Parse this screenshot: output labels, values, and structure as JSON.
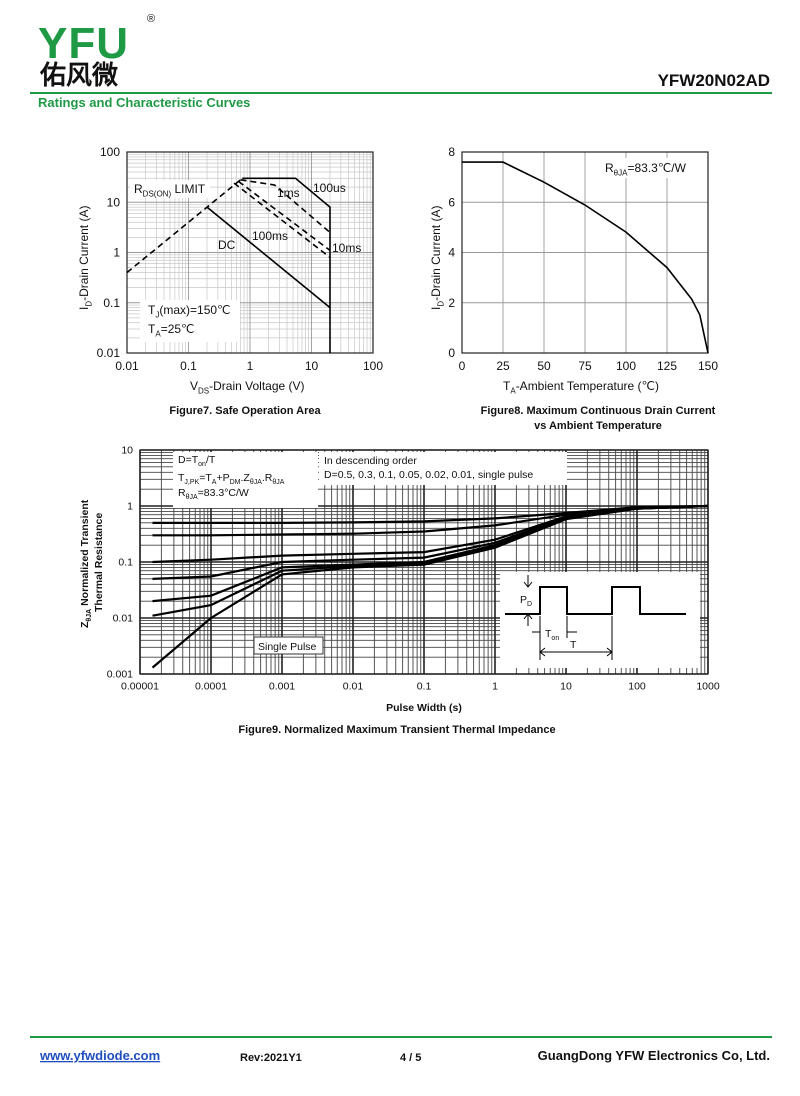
{
  "header": {
    "logo": "YFU",
    "logo_mark": "®",
    "logo_cn": "佑风微",
    "part_number": "YFW20N02AD",
    "section": "Ratings and Characteristic Curves"
  },
  "footer": {
    "website": "www.yfwdiode.com",
    "revision": "Rev:2021Y1",
    "page": "4 / 5",
    "company": "GuangDong YFW Electronics Co, Ltd."
  },
  "chart_data": [
    {
      "type": "line",
      "caption": [
        "Figure7. Safe Operation Area"
      ],
      "xlabel": [
        "V",
        "DS",
        "-Drain Voltage (V)"
      ],
      "ylabel": [
        "I",
        "D",
        "-Drain Current (A)"
      ],
      "xscale": "log",
      "yscale": "log",
      "grid": true,
      "xlim": [
        0.01,
        100
      ],
      "ylim": [
        0.01,
        100
      ],
      "xticks": [
        0.01,
        0.1,
        1,
        10,
        100
      ],
      "yticks": [
        0.01,
        0.1,
        1,
        10,
        100
      ],
      "series": [
        {
          "color": "#000000",
          "style": "dashed",
          "x": [
            0.01,
            0.7
          ],
          "values": [
            0.4,
            28
          ]
        },
        {
          "name": "100us",
          "color": "#000000",
          "style": "solid",
          "x": [
            0.75,
            5.5,
            20,
            20
          ],
          "values": [
            30,
            30,
            8,
            0.01
          ]
        },
        {
          "name": "1ms",
          "color": "#000000",
          "style": "dashed",
          "x": [
            0.7,
            2.5,
            20
          ],
          "values": [
            28,
            22,
            2.5
          ]
        },
        {
          "name": "10ms",
          "color": "#000000",
          "style": "dashed",
          "x": [
            0.65,
            20
          ],
          "values": [
            26,
            1.1
          ]
        },
        {
          "name": "100ms",
          "color": "#000000",
          "style": "dashed",
          "x": [
            0.55,
            20
          ],
          "values": [
            24,
            0.8
          ]
        },
        {
          "name": "DC",
          "color": "#000000",
          "style": "solid",
          "x": [
            0.2,
            20
          ],
          "values": [
            8,
            0.08
          ]
        }
      ],
      "annotations": [
        [
          "R",
          "DS(ON)",
          " LIMIT"
        ],
        [
          "T",
          "J",
          "(max)=150℃"
        ],
        [
          "T",
          "A",
          "=25℃"
        ]
      ]
    },
    {
      "type": "line",
      "caption": [
        "Figure8. Maximum Continuous Drain Current",
        "vs Ambient Temperature"
      ],
      "xlabel": [
        "T",
        "A",
        "-Ambient Temperature (℃)"
      ],
      "ylabel": [
        "I",
        "D",
        "-Drain Current (A)"
      ],
      "xscale": "linear",
      "yscale": "linear",
      "grid": true,
      "xlim": [
        0,
        150
      ],
      "ylim": [
        0,
        8
      ],
      "xticks": [
        0,
        25,
        50,
        75,
        100,
        125,
        150
      ],
      "yticks": [
        0,
        2,
        4,
        6,
        8
      ],
      "series": [
        {
          "color": "#000000",
          "style": "solid",
          "x": [
            0,
            25,
            50,
            75,
            100,
            125,
            140,
            145,
            150
          ],
          "values": [
            7.6,
            7.6,
            6.8,
            5.89,
            4.81,
            3.4,
            2.15,
            1.52,
            0
          ]
        }
      ],
      "annotations": [
        [
          "R",
          "θJA",
          "=83.3℃/W"
        ]
      ]
    },
    {
      "type": "line",
      "caption": [
        "Figure9. Normalized Maximum Transient Thermal Impedance"
      ],
      "xlabel": [
        "Pulse Width (s)"
      ],
      "ylabel": [
        "Z",
        "θJA",
        " Normalized Transient"
      ],
      "ylabel_line2": "Thermal Resistance",
      "xscale": "log",
      "yscale": "log",
      "grid": true,
      "xlim": [
        1e-05,
        1000
      ],
      "ylim": [
        0.001,
        10
      ],
      "xticks": [
        1e-05,
        0.0001,
        0.001,
        0.01,
        0.1,
        1,
        10,
        100,
        1000
      ],
      "yticks": [
        0.001,
        0.01,
        0.1,
        1,
        10
      ],
      "x": [
        1.5e-05,
        0.0001,
        0.001,
        0.01,
        0.1,
        1,
        10,
        100,
        1000
      ],
      "series": [
        {
          "color": "#000000",
          "style": "solid",
          "values": [
            0.5,
            0.5,
            0.5,
            0.51,
            0.53,
            0.6,
            0.75,
            0.95,
            1.0
          ]
        },
        {
          "color": "#000000",
          "style": "solid",
          "values": [
            0.3,
            0.3,
            0.31,
            0.32,
            0.35,
            0.45,
            0.7,
            0.93,
            1.0
          ]
        },
        {
          "color": "#000000",
          "style": "solid",
          "values": [
            0.1,
            0.11,
            0.13,
            0.14,
            0.15,
            0.25,
            0.65,
            0.92,
            1.0
          ]
        },
        {
          "color": "#000000",
          "style": "solid",
          "values": [
            0.05,
            0.055,
            0.1,
            0.11,
            0.12,
            0.22,
            0.62,
            0.91,
            1.0
          ]
        },
        {
          "color": "#000000",
          "style": "solid",
          "values": [
            0.02,
            0.025,
            0.08,
            0.09,
            0.1,
            0.2,
            0.6,
            0.9,
            1.0
          ]
        },
        {
          "color": "#000000",
          "style": "solid",
          "values": [
            0.011,
            0.017,
            0.07,
            0.085,
            0.095,
            0.19,
            0.6,
            0.9,
            1.0
          ]
        },
        {
          "color": "#000000",
          "style": "solid",
          "values": [
            0.0013,
            0.01,
            0.06,
            0.08,
            0.09,
            0.18,
            0.58,
            0.9,
            1.0
          ]
        }
      ],
      "annotations": [
        [
          "D=T",
          "on",
          "/T"
        ],
        [
          "T",
          "J,PK",
          "=T",
          "A",
          "+P",
          "DM",
          ".Z",
          "θJA",
          ".R",
          "θJA"
        ],
        [
          "R",
          "θJA",
          "=83.3°C/W"
        ],
        "In descending order",
        "D=0.5, 0.3, 0.1, 0.05, 0.02, 0.01, single pulse",
        "Single Pulse",
        [
          "P",
          "D"
        ],
        [
          "T",
          "on"
        ],
        "T"
      ]
    }
  ]
}
